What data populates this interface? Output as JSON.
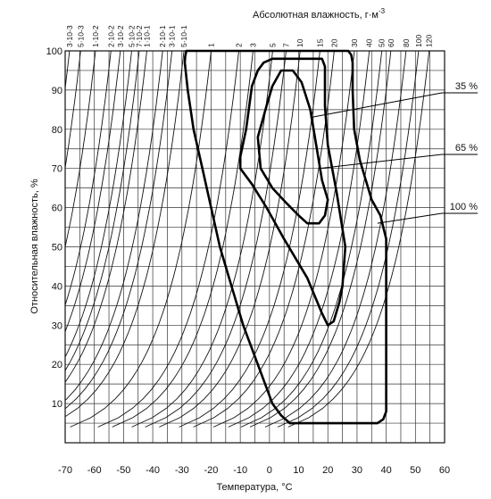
{
  "chart_data": {
    "type": "line",
    "title": "",
    "xlabel": "Температура, °С",
    "ylabel": "Относительная влажность, %",
    "top_axis_label": "Абсолютная влажность, г·м",
    "top_axis_label_sup": "-3",
    "xlim": [
      -70,
      60
    ],
    "ylim": [
      0,
      100
    ],
    "x_ticks": [
      -70,
      -60,
      -50,
      -40,
      -30,
      -20,
      -10,
      0,
      10,
      20,
      30,
      40,
      50,
      60
    ],
    "y_ticks": [
      10,
      20,
      30,
      40,
      50,
      60,
      70,
      80,
      90,
      100
    ],
    "grid": true,
    "top_axis_ticks": [
      {
        "label": "3·10-3",
        "value": 0.003,
        "x_at_top": -68.5
      },
      {
        "label": "5·10-3",
        "value": 0.005,
        "x_at_top": -64.7
      },
      {
        "label": "1·10-2",
        "value": 0.01,
        "x_at_top": -59.6
      },
      {
        "label": "2·10-2",
        "value": 0.02,
        "x_at_top": -54.3
      },
      {
        "label": "3·10-2",
        "value": 0.03,
        "x_at_top": -51.1
      },
      {
        "label": "5·10-2",
        "value": 0.05,
        "x_at_top": -47.2
      },
      {
        "label": "7·10-2",
        "value": 0.07,
        "x_at_top": -44.6
      },
      {
        "label": "1·10-1",
        "value": 0.1,
        "x_at_top": -42.0
      },
      {
        "label": "2·10-1",
        "value": 0.2,
        "x_at_top": -36.6
      },
      {
        "label": "3·10-1",
        "value": 0.3,
        "x_at_top": -33.4
      },
      {
        "label": "5·10-1",
        "value": 0.5,
        "x_at_top": -29.3
      },
      {
        "label": "1",
        "value": 1,
        "x_at_top": -20.0
      },
      {
        "label": "2",
        "value": 2,
        "x_at_top": -10.5
      },
      {
        "label": "3",
        "value": 3,
        "x_at_top": -5.6
      },
      {
        "label": "5",
        "value": 5,
        "x_at_top": 1.1
      },
      {
        "label": "7",
        "value": 7,
        "x_at_top": 5.7
      },
      {
        "label": "10",
        "value": 10,
        "x_at_top": 10.5
      },
      {
        "label": "15",
        "value": 15,
        "x_at_top": 17.3
      },
      {
        "label": "20",
        "value": 20,
        "x_at_top": 22.2
      },
      {
        "label": "30",
        "value": 30,
        "x_at_top": 29.1
      },
      {
        "label": "40",
        "value": 40,
        "x_at_top": 34.2
      },
      {
        "label": "50",
        "value": 50,
        "x_at_top": 38.5
      },
      {
        "label": "60",
        "value": 60,
        "x_at_top": 41.6
      },
      {
        "label": "80",
        "value": 80,
        "x_at_top": 46.8
      },
      {
        "label": "100",
        "value": 100,
        "x_at_top": 51.1
      },
      {
        "label": "120",
        "value": 120,
        "x_at_top": 54.7
      }
    ],
    "series": [
      {
        "name": "100 %",
        "points": [
          [
            -28.5,
            100
          ],
          [
            -28.9,
            98.5
          ],
          [
            -29,
            97
          ],
          [
            -28,
            90
          ],
          [
            -26,
            80
          ],
          [
            -23,
            70
          ],
          [
            -20,
            60
          ],
          [
            -17,
            50
          ],
          [
            -13,
            40
          ],
          [
            -9,
            30
          ],
          [
            -4,
            20
          ],
          [
            1,
            10
          ],
          [
            4,
            7
          ],
          [
            7,
            5
          ],
          [
            37,
            5
          ],
          [
            39,
            6
          ],
          [
            40,
            8
          ],
          [
            40,
            30
          ],
          [
            40,
            52
          ],
          [
            38,
            58
          ],
          [
            35,
            62
          ],
          [
            31,
            72
          ],
          [
            29,
            80
          ],
          [
            28.5,
            90
          ],
          [
            28.5,
            97
          ],
          [
            28,
            99
          ],
          [
            27,
            100
          ],
          [
            -28.5,
            100
          ]
        ],
        "label_at": [
          37,
          56
        ]
      },
      {
        "name": "65 %",
        "points": [
          [
            -6,
            91
          ],
          [
            -4,
            95
          ],
          [
            -2,
            97
          ],
          [
            1,
            98
          ],
          [
            18,
            98
          ],
          [
            19,
            96
          ],
          [
            19,
            86
          ],
          [
            20,
            76
          ],
          [
            23,
            64
          ],
          [
            26,
            50
          ],
          [
            25,
            40
          ],
          [
            24,
            36
          ],
          [
            22,
            31
          ],
          [
            20,
            30
          ],
          [
            18,
            33
          ],
          [
            13,
            42
          ],
          [
            5,
            52
          ],
          [
            -1,
            60
          ],
          [
            -6,
            66
          ],
          [
            -10,
            70
          ],
          [
            -10,
            73
          ],
          [
            -8,
            80
          ],
          [
            -6,
            91
          ]
        ],
        "label_at": [
          17,
          70
        ]
      },
      {
        "name": "35 %",
        "points": [
          [
            -1,
            86
          ],
          [
            1,
            91
          ],
          [
            4,
            95
          ],
          [
            8,
            95
          ],
          [
            11,
            92
          ],
          [
            14,
            85
          ],
          [
            16,
            76
          ],
          [
            18,
            67
          ],
          [
            20,
            62
          ],
          [
            19,
            58
          ],
          [
            17,
            56
          ],
          [
            13,
            56
          ],
          [
            10,
            58
          ],
          [
            6,
            61
          ],
          [
            1,
            65
          ],
          [
            -3,
            70
          ],
          [
            -4,
            78
          ],
          [
            -1,
            86
          ]
        ],
        "label_at": [
          14,
          83
        ]
      }
    ],
    "legend": [
      {
        "name": "35 %",
        "placement": "right"
      },
      {
        "name": "65 %",
        "placement": "right"
      },
      {
        "name": "100 %",
        "placement": "right"
      }
    ]
  }
}
